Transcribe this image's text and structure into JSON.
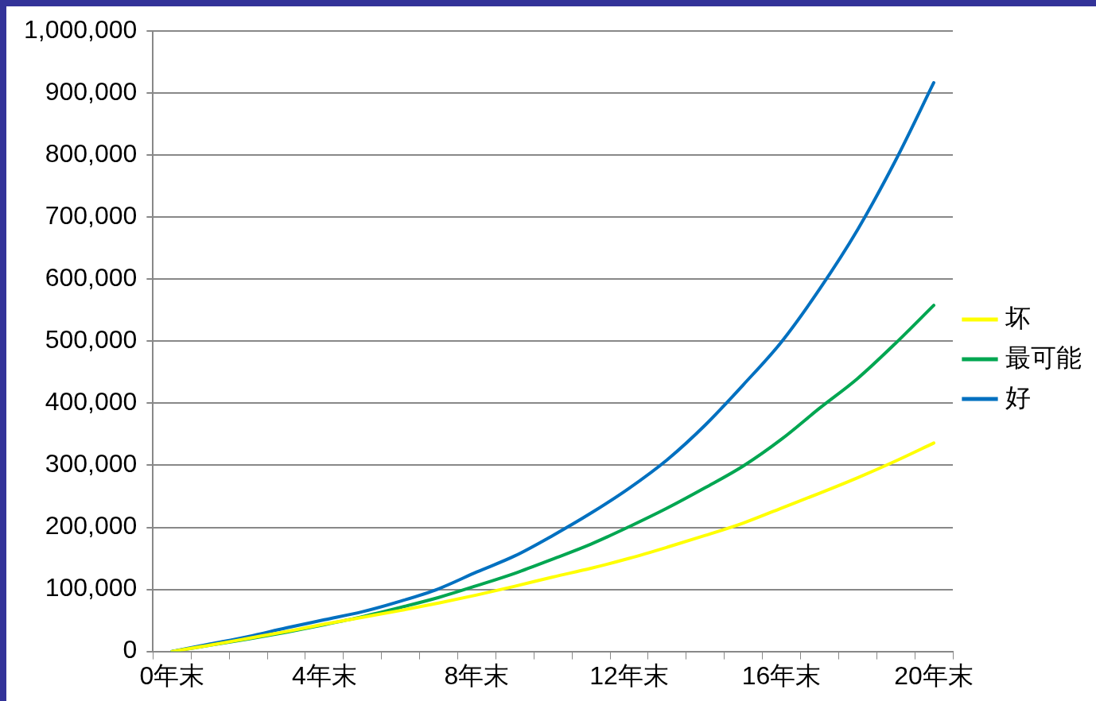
{
  "chart_data": {
    "type": "line",
    "categories": [
      "0年末",
      null,
      null,
      null,
      "4年末",
      null,
      null,
      null,
      "8年末",
      null,
      null,
      null,
      "12年末",
      null,
      null,
      null,
      "16年末",
      null,
      null,
      null,
      "20年末"
    ],
    "series": [
      {
        "name": "坏",
        "color": "#ffff00",
        "values": [
          0,
          10000,
          21000,
          32000,
          44000,
          55000,
          66000,
          78000,
          91000,
          105000,
          120000,
          134000,
          150000,
          168000,
          187000,
          207000,
          231000,
          255000,
          280000,
          307000,
          336000
        ]
      },
      {
        "name": "最可能",
        "color": "#00a651",
        "values": [
          0,
          10000,
          20000,
          31000,
          43000,
          56000,
          71000,
          87000,
          106000,
          126000,
          149000,
          173000,
          201000,
          231000,
          264000,
          299000,
          342000,
          392000,
          440000,
          497000,
          558000
        ]
      },
      {
        "name": "好",
        "color": "#0070c0",
        "values": [
          0,
          12000,
          24000,
          38000,
          51000,
          64000,
          81000,
          101000,
          128000,
          154000,
          187000,
          223000,
          263000,
          309000,
          365000,
          430000,
          499000,
          584000,
          680000,
          792000,
          917000
        ]
      }
    ],
    "ylim": [
      0,
      1000000
    ],
    "yticks": [
      0,
      {
        "value": 100000,
        "label": "100,000"
      },
      {
        "value": 200000,
        "label": "200,000"
      },
      {
        "value": 300000,
        "label": "300,000"
      },
      {
        "value": 400000,
        "label": "400,000"
      },
      {
        "value": 500000,
        "label": "500,000"
      },
      {
        "value": 600000,
        "label": "600,000"
      },
      {
        "value": 700000,
        "label": "700,000"
      },
      {
        "value": 800000,
        "label": "800,000"
      },
      {
        "value": 900000,
        "label": "900,000"
      },
      {
        "value": 1000000,
        "label": "1,000,000"
      }
    ],
    "grid": "y",
    "legend": "right",
    "marker": "none",
    "line_style": "solid"
  }
}
